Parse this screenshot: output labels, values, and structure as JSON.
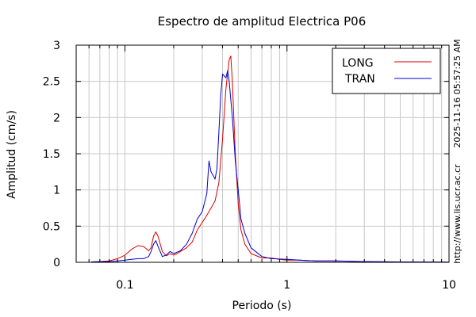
{
  "chart_data": {
    "type": "line",
    "title": "Espectro de amplitud Electrica P06",
    "xlabel": "Periodo (s)",
    "ylabel": "Amplitud (cm/s)",
    "xscale": "log",
    "xlim": [
      0.05,
      10
    ],
    "ylim": [
      0,
      3
    ],
    "x_ticks": [
      {
        "value": 0.1,
        "label": "0.1"
      },
      {
        "value": 1,
        "label": "1"
      },
      {
        "value": 10,
        "label": "10"
      }
    ],
    "y_ticks": [
      {
        "value": 0,
        "label": "0"
      },
      {
        "value": 0.5,
        "label": "0.5"
      },
      {
        "value": 1,
        "label": "1"
      },
      {
        "value": 1.5,
        "label": "1.5"
      },
      {
        "value": 2,
        "label": "2"
      },
      {
        "value": 2.5,
        "label": "2.5"
      },
      {
        "value": 3,
        "label": "3"
      }
    ],
    "grid": true,
    "legend_position": "top-right",
    "timestamp": "2025-11-16 05:57:25 AM",
    "source_url": "http://www.lis.ucr.ac.cr",
    "series": [
      {
        "name": "LONG",
        "color": "#dd0000",
        "points": [
          [
            0.062,
            0.005
          ],
          [
            0.07,
            0.01
          ],
          [
            0.08,
            0.02
          ],
          [
            0.09,
            0.05
          ],
          [
            0.1,
            0.1
          ],
          [
            0.11,
            0.18
          ],
          [
            0.12,
            0.23
          ],
          [
            0.13,
            0.22
          ],
          [
            0.14,
            0.16
          ],
          [
            0.145,
            0.2
          ],
          [
            0.15,
            0.36
          ],
          [
            0.155,
            0.42
          ],
          [
            0.16,
            0.36
          ],
          [
            0.17,
            0.15
          ],
          [
            0.18,
            0.09
          ],
          [
            0.19,
            0.12
          ],
          [
            0.2,
            0.1
          ],
          [
            0.21,
            0.12
          ],
          [
            0.22,
            0.15
          ],
          [
            0.24,
            0.2
          ],
          [
            0.26,
            0.28
          ],
          [
            0.28,
            0.45
          ],
          [
            0.3,
            0.55
          ],
          [
            0.32,
            0.65
          ],
          [
            0.34,
            0.75
          ],
          [
            0.36,
            0.85
          ],
          [
            0.38,
            1.1
          ],
          [
            0.4,
            1.7
          ],
          [
            0.42,
            2.4
          ],
          [
            0.44,
            2.8
          ],
          [
            0.45,
            2.85
          ],
          [
            0.46,
            2.5
          ],
          [
            0.48,
            1.5
          ],
          [
            0.5,
            0.8
          ],
          [
            0.52,
            0.45
          ],
          [
            0.55,
            0.25
          ],
          [
            0.6,
            0.12
          ],
          [
            0.7,
            0.06
          ],
          [
            0.8,
            0.06
          ],
          [
            0.9,
            0.04
          ],
          [
            1.0,
            0.03
          ],
          [
            1.2,
            0.03
          ],
          [
            1.5,
            0.02
          ],
          [
            2.0,
            0.02
          ],
          [
            3.0,
            0.01
          ],
          [
            5.0,
            0.005
          ],
          [
            10.0,
            0.002
          ]
        ]
      },
      {
        "name": "TRAN",
        "color": "#0000cc",
        "points": [
          [
            0.062,
            0.005
          ],
          [
            0.07,
            0.01
          ],
          [
            0.08,
            0.01
          ],
          [
            0.09,
            0.02
          ],
          [
            0.1,
            0.03
          ],
          [
            0.11,
            0.04
          ],
          [
            0.12,
            0.05
          ],
          [
            0.13,
            0.05
          ],
          [
            0.14,
            0.08
          ],
          [
            0.145,
            0.15
          ],
          [
            0.15,
            0.25
          ],
          [
            0.155,
            0.3
          ],
          [
            0.16,
            0.22
          ],
          [
            0.17,
            0.08
          ],
          [
            0.18,
            0.1
          ],
          [
            0.19,
            0.15
          ],
          [
            0.2,
            0.12
          ],
          [
            0.21,
            0.14
          ],
          [
            0.22,
            0.16
          ],
          [
            0.24,
            0.25
          ],
          [
            0.26,
            0.4
          ],
          [
            0.28,
            0.6
          ],
          [
            0.3,
            0.7
          ],
          [
            0.32,
            0.95
          ],
          [
            0.33,
            1.4
          ],
          [
            0.34,
            1.25
          ],
          [
            0.35,
            1.2
          ],
          [
            0.36,
            1.15
          ],
          [
            0.37,
            1.3
          ],
          [
            0.38,
            1.8
          ],
          [
            0.39,
            2.3
          ],
          [
            0.4,
            2.6
          ],
          [
            0.42,
            2.55
          ],
          [
            0.43,
            2.65
          ],
          [
            0.44,
            2.5
          ],
          [
            0.46,
            2.0
          ],
          [
            0.48,
            1.4
          ],
          [
            0.5,
            1.0
          ],
          [
            0.52,
            0.6
          ],
          [
            0.55,
            0.4
          ],
          [
            0.6,
            0.2
          ],
          [
            0.7,
            0.08
          ],
          [
            0.8,
            0.05
          ],
          [
            1.0,
            0.04
          ],
          [
            1.2,
            0.03
          ],
          [
            1.5,
            0.02
          ],
          [
            2.0,
            0.02
          ],
          [
            3.0,
            0.01
          ],
          [
            5.0,
            0.005
          ],
          [
            10.0,
            0.002
          ]
        ]
      }
    ]
  }
}
